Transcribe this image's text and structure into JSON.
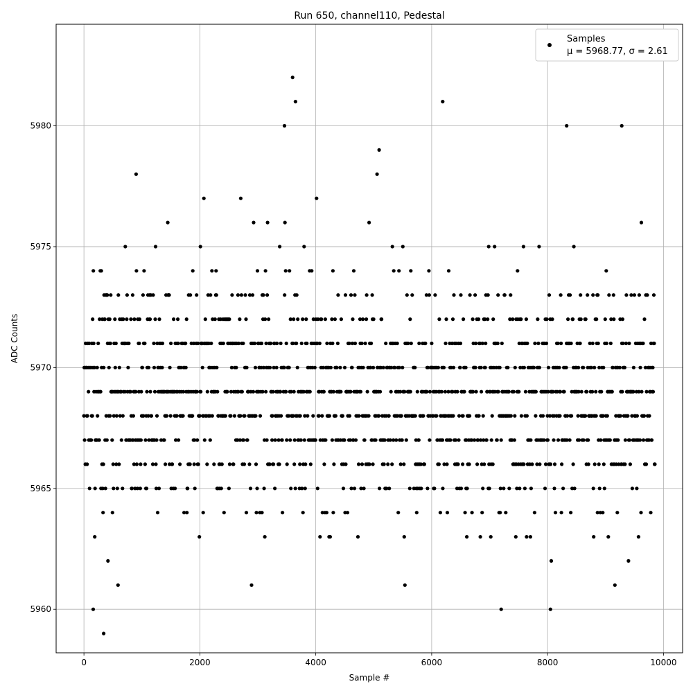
{
  "chart_data": {
    "type": "scatter",
    "title": "Run 650, channel110, Pedestal",
    "xlabel": "Sample #",
    "ylabel": "ADC Counts",
    "xlim": [
      -480,
      10330
    ],
    "ylim": [
      5958.2,
      5984.2
    ],
    "xticks": [
      0,
      2000,
      4000,
      6000,
      8000,
      10000
    ],
    "yticks": [
      5960,
      5965,
      5970,
      5975,
      5980
    ],
    "grid": true,
    "legend": {
      "placement": "top-right",
      "entries": [
        {
          "marker_label": "Samples",
          "stats_label": "μ = 5968.77, σ = 2.61"
        }
      ]
    },
    "n_samples": 9856,
    "series": [
      {
        "name": "Samples",
        "color": "#000000",
        "marker": "circle",
        "x_range": [
          0,
          9855
        ],
        "y_distribution": {
          "5967": 0.12,
          "5968": 0.15,
          "5969": 0.16,
          "5970": 0.13,
          "5971": 0.1,
          "5972": 0.06,
          "5973": 0.035,
          "5974": 0.015,
          "5975": 0.008,
          "5976": 0.003,
          "5977": 0.002,
          "5978": 0.0012,
          "5979": 0.0004,
          "5980": 0.0002,
          "5966": 0.08,
          "5965": 0.045,
          "5964": 0.018,
          "5963": 0.009,
          "5962": 0.003,
          "5961": 0.0015
        },
        "outliers": [
          {
            "x": 160,
            "y": 5960
          },
          {
            "x": 340,
            "y": 5959
          },
          {
            "x": 7200,
            "y": 5960
          },
          {
            "x": 8050,
            "y": 5960
          },
          {
            "x": 3460,
            "y": 5980
          },
          {
            "x": 3600,
            "y": 5982
          },
          {
            "x": 3650,
            "y": 5981
          },
          {
            "x": 6190,
            "y": 5981
          },
          {
            "x": 8330,
            "y": 5980
          },
          {
            "x": 9280,
            "y": 5980
          }
        ]
      }
    ]
  }
}
